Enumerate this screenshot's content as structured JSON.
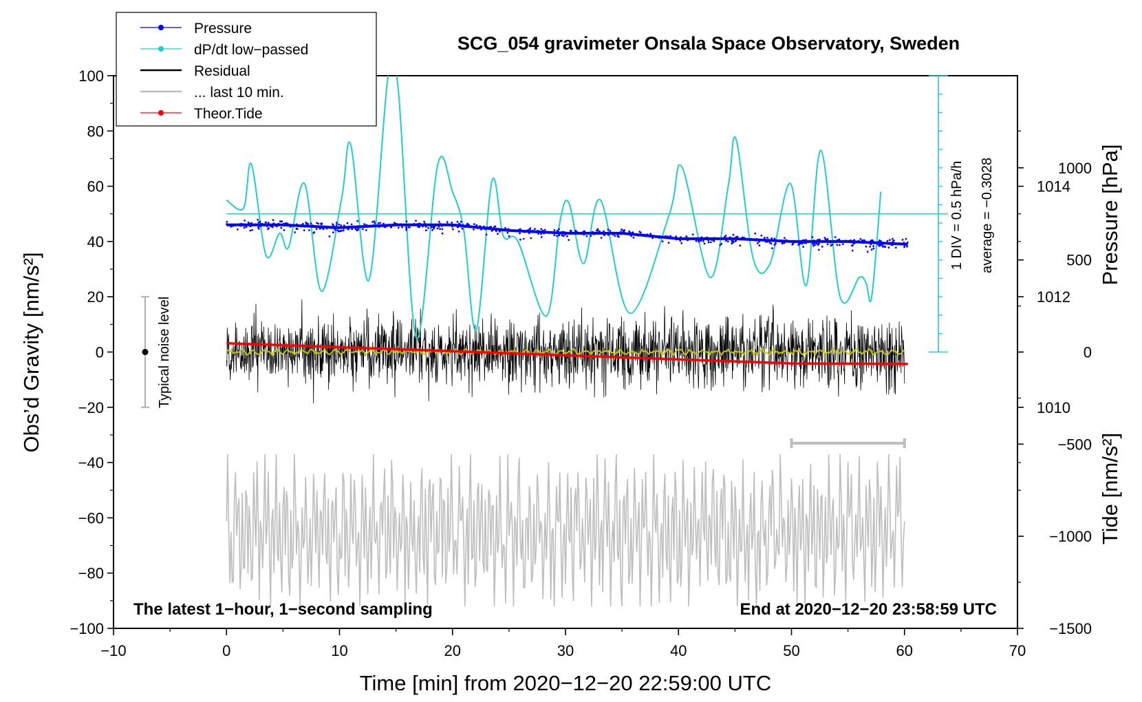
{
  "colors": {
    "pressure": "#0000ff",
    "dpdt": "#22cccc",
    "residual": "#000000",
    "last10": "#bdbdbd",
    "tide": "#ff0000",
    "smooth": "#c8c800",
    "noise": "#b0b0b0"
  },
  "chart_data": {
    "type": "line",
    "title": "SCG_054 gravimeter Onsala Space Observatory, Sweden",
    "xlabel": "Time [min] from 2020−12−20 22:59:00 UTC",
    "ylabel_left": "Obs’d Gravity [nm/s²]",
    "ylabel_pressure": "Pressure [hPa]",
    "ylabel_tide": "Tide [nm/s²]",
    "xlim": [
      -10,
      70
    ],
    "ylim": [
      -100,
      100
    ],
    "pressure_lim": [
      1006,
      1016
    ],
    "tide_lim": [
      -1500,
      1500
    ],
    "x_ticks": [
      -10,
      0,
      10,
      20,
      30,
      40,
      50,
      60,
      70
    ],
    "x_tick_labels": [
      "−10",
      "0",
      "10",
      "20",
      "30",
      "40",
      "50",
      "60",
      "70"
    ],
    "y_ticks": [
      100,
      80,
      60,
      40,
      20,
      0,
      -20,
      -40,
      -60,
      -80,
      -100
    ],
    "y_tick_labels": [
      "100",
      "80",
      "60",
      "40",
      "20",
      "0",
      "−20",
      "−40",
      "−60",
      "−80",
      "−100"
    ],
    "pressure_ticks": [
      1014,
      1012,
      1010
    ],
    "pressure_tick_labels": [
      "1014",
      "1012",
      "1010"
    ],
    "tide_ticks": [
      1000,
      500,
      0,
      -500,
      -1000,
      -1500
    ],
    "tide_tick_labels": [
      "1000",
      "500",
      "0",
      "−500",
      "−1000",
      "−1500"
    ],
    "legend": [
      "Pressure",
      "dP/dt low−passed",
      "Residual",
      "... last 10 min.",
      "Theor.Tide"
    ],
    "legend_position": "top-left",
    "annotations": {
      "bottom_left": "The latest 1−hour, 1−second sampling",
      "bottom_right": "End at 2020−12−20 23:58:59 UTC",
      "noise_label": "Typical noise level",
      "div_label": "1 DIV = 0.5 hPa/h",
      "average_label": "average = −0.3028"
    },
    "noise_bar": {
      "x": -7.2,
      "y_min": -20,
      "y_max": 20,
      "center": 0
    },
    "last10_bar": {
      "x_start": 50,
      "x_end": 60,
      "y": -33
    },
    "dpdt_scale": {
      "x": 63,
      "y_top": 100,
      "y_bottom": 0,
      "divisions": 15,
      "zero_y": 50
    },
    "pressure_series": {
      "name": "Pressure",
      "x": [
        0,
        5,
        10,
        15,
        20,
        25,
        30,
        35,
        40,
        45,
        50,
        55,
        60.3
      ],
      "y": [
        1013.3,
        1013.3,
        1013.25,
        1013.3,
        1013.3,
        1013.2,
        1013.15,
        1013.15,
        1013.05,
        1013.05,
        1013.0,
        1013.0,
        1012.95
      ]
    },
    "dpdt_series": {
      "name": "dP/dt low−passed",
      "x": [
        0,
        1.5,
        2.2,
        3.5,
        4.7,
        5.5,
        6.9,
        8.4,
        10.2,
        11,
        12.6,
        14.3,
        15.2,
        16.8,
        18.7,
        20,
        21,
        22.1,
        23.5,
        24.5,
        25.8,
        28.3,
        29.5,
        30.3,
        31.6,
        33.1,
        35.7,
        39.2,
        40.3,
        42.8,
        44.4,
        45.1,
        46.6,
        48.1,
        49.9,
        51.3,
        52.6,
        54.3,
        56.0,
        56.6,
        57.1,
        57.9
      ],
      "y": [
        55,
        52,
        68,
        35,
        43,
        38,
        61,
        22,
        56,
        75,
        26,
        100,
        95,
        5,
        68,
        58,
        44,
        8,
        62,
        42,
        40,
        13,
        47,
        54,
        32,
        55,
        14,
        50,
        67,
        27,
        60,
        77,
        34,
        32,
        61,
        24,
        73,
        20,
        27,
        25,
        20,
        58
      ]
    },
    "residual_series": {
      "name": "Residual",
      "x_range": [
        0,
        60
      ],
      "envelope": 30
    },
    "last10_series": {
      "name": "... last 10 min.",
      "x_range": [
        0,
        60
      ],
      "y_center": -65,
      "amplitude": 30
    },
    "tide_series": {
      "name": "Theor.Tide",
      "x": [
        0,
        10,
        20,
        30,
        40,
        50,
        60.3
      ],
      "y": [
        48,
        26,
        5,
        -18,
        -40,
        -62,
        -65
      ]
    }
  }
}
